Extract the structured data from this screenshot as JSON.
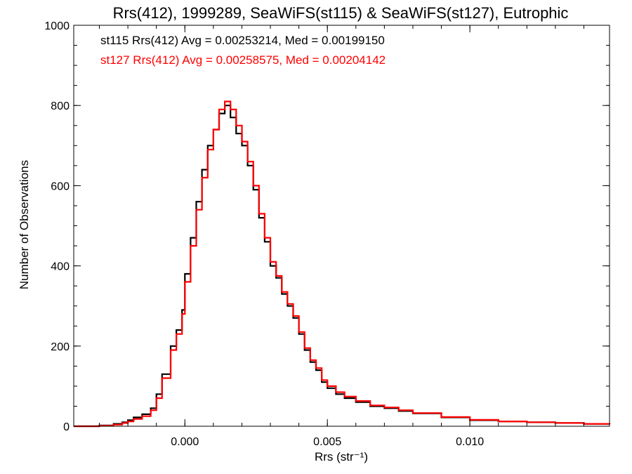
{
  "chart_data": {
    "type": "line",
    "style": "step-histogram",
    "title": "Rrs(412), 1999289, SeaWiFS(st115) & SeaWiFS(st127), Eutrophic",
    "xlabel": "Rrs (str⁻¹)",
    "ylabel": "Number of Observations",
    "xlim": [
      -0.0039,
      0.0149
    ],
    "ylim": [
      0,
      1000
    ],
    "xticks": [
      0.0,
      0.005,
      0.01
    ],
    "xtick_labels": [
      "0.000",
      "0.005",
      "0.010"
    ],
    "yticks": [
      0,
      200,
      400,
      600,
      800,
      1000
    ],
    "ytick_labels": [
      "0",
      "200",
      "400",
      "600",
      "800",
      "1000"
    ],
    "grid": false,
    "legend_position": "top-left",
    "annotations": [
      {
        "text": "st115 Rrs(412) Avg = 0.00253214, Med = 0.00199150",
        "color": "#000000"
      },
      {
        "text": "st127 Rrs(412) Avg = 0.00258575, Med = 0.00204142",
        "color": "#ff0000"
      }
    ],
    "x": [
      -0.0039,
      -0.0035,
      -0.003,
      -0.0025,
      -0.0022,
      -0.002,
      -0.0018,
      -0.0015,
      -0.0012,
      -0.001,
      -0.0008,
      -0.0005,
      -0.0003,
      -0.0001,
      0.0,
      0.0002,
      0.0004,
      0.0006,
      0.0008,
      0.001,
      0.0012,
      0.0014,
      0.0016,
      0.0018,
      0.002,
      0.0022,
      0.0024,
      0.0026,
      0.0028,
      0.003,
      0.0032,
      0.0034,
      0.0036,
      0.0038,
      0.004,
      0.0042,
      0.0044,
      0.0046,
      0.0048,
      0.005,
      0.0053,
      0.0056,
      0.006,
      0.0065,
      0.007,
      0.0075,
      0.008,
      0.009,
      0.01,
      0.011,
      0.012,
      0.013,
      0.014,
      0.0149
    ],
    "series": [
      {
        "color": "#000000",
        "values": [
          0,
          0,
          2,
          6,
          10,
          15,
          22,
          30,
          45,
          80,
          130,
          200,
          240,
          290,
          380,
          470,
          560,
          640,
          700,
          740,
          780,
          800,
          770,
          730,
          700,
          650,
          590,
          520,
          460,
          400,
          370,
          330,
          300,
          270,
          230,
          190,
          160,
          140,
          110,
          95,
          80,
          70,
          60,
          50,
          45,
          38,
          32,
          22,
          15,
          12,
          10,
          8,
          6,
          5
        ]
      },
      {
        "color": "#ff0000",
        "values": [
          0,
          0,
          1,
          4,
          8,
          12,
          18,
          25,
          40,
          70,
          120,
          190,
          230,
          280,
          360,
          450,
          540,
          620,
          690,
          740,
          790,
          810,
          790,
          750,
          710,
          660,
          600,
          530,
          470,
          410,
          375,
          335,
          305,
          275,
          235,
          195,
          165,
          145,
          115,
          100,
          85,
          74,
          63,
          52,
          47,
          40,
          33,
          23,
          16,
          12,
          10,
          8,
          6,
          5
        ]
      }
    ]
  }
}
